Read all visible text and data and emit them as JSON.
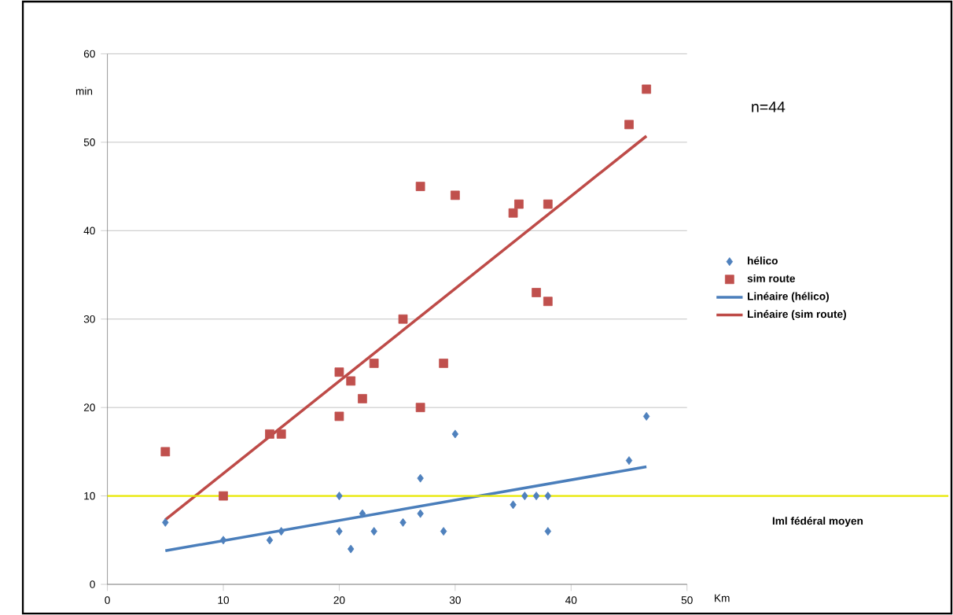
{
  "chart_data": {
    "type": "scatter",
    "xlabel": "Km",
    "ylabel": "min",
    "xlim": [
      0,
      50
    ],
    "ylim": [
      0,
      60
    ],
    "xticks": [
      0,
      10,
      20,
      30,
      40,
      50
    ],
    "yticks": [
      0,
      10,
      20,
      30,
      40,
      50,
      60
    ],
    "grid": "y",
    "legend": "right",
    "annotations": [
      "n=44"
    ],
    "ref_lines": [
      {
        "axis": "y",
        "value": 10,
        "label": "Iml fédéral moyen",
        "color": "#e8e800"
      }
    ],
    "series": [
      {
        "name": "hélico",
        "marker": "diamond",
        "color": "#4f81bd",
        "x": [
          5,
          10,
          14,
          15,
          20,
          20,
          21,
          22,
          23,
          25.5,
          27,
          27,
          29,
          30,
          35,
          36,
          37,
          38,
          38,
          45,
          46.5
        ],
        "values": [
          7,
          5,
          5,
          6,
          10,
          6,
          4,
          8,
          6,
          7,
          12,
          8,
          6,
          17,
          9,
          10,
          10,
          10,
          6,
          14,
          19
        ]
      },
      {
        "name": "sim route",
        "marker": "square",
        "color": "#c0504d",
        "x": [
          5,
          10,
          14,
          15,
          20,
          20,
          21,
          22,
          23,
          25.5,
          27,
          27,
          29,
          30,
          35,
          35.5,
          37,
          38,
          38,
          45,
          46.5
        ],
        "values": [
          15,
          10,
          17,
          17,
          24,
          19,
          23,
          21,
          25,
          30,
          45,
          20,
          25,
          44,
          42,
          43,
          33,
          43,
          32,
          52,
          56
        ]
      },
      {
        "name": "Linéaire (hélico)",
        "type": "line",
        "marker": "none",
        "color": "#4a7ebb",
        "x": [
          5,
          46.5
        ],
        "values": [
          3.8,
          13.3
        ]
      },
      {
        "name": "Linéaire (sim route)",
        "type": "line",
        "marker": "none",
        "color": "#be4b48",
        "x": [
          5,
          46.5
        ],
        "values": [
          7.3,
          50.7
        ]
      }
    ]
  }
}
